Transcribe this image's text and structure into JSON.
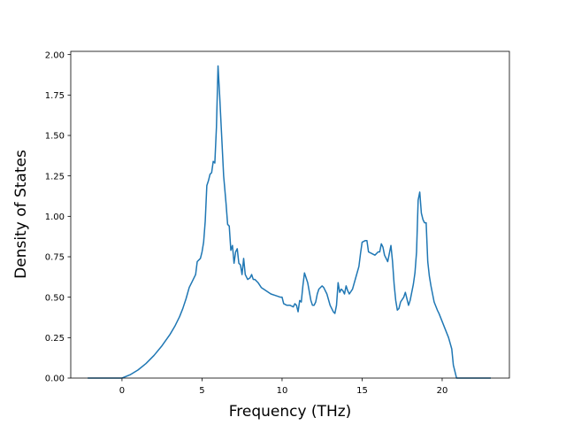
{
  "chart_data": {
    "type": "line",
    "title": "",
    "xlabel": "Frequency (THz)",
    "ylabel": "Density of States",
    "xlim": [
      -3.2,
      24.2
    ],
    "ylim": [
      0.0,
      2.02
    ],
    "grid": false,
    "x_ticks": [
      0,
      5,
      10,
      15,
      20
    ],
    "x_tick_labels": [
      "0",
      "5",
      "10",
      "15",
      "20"
    ],
    "y_ticks": [
      0.0,
      0.25,
      0.5,
      0.75,
      1.0,
      1.25,
      1.5,
      1.75,
      2.0
    ],
    "y_tick_labels": [
      "0.00",
      "0.25",
      "0.50",
      "0.75",
      "1.00",
      "1.25",
      "1.50",
      "1.75",
      "2.00"
    ],
    "series": [
      {
        "color": "#1f77b4",
        "x": [
          -2.1,
          -1.0,
          0.0,
          0.5,
          1.0,
          1.5,
          2.0,
          2.5,
          3.0,
          3.3,
          3.6,
          3.8,
          4.0,
          4.2,
          4.4,
          4.6,
          4.7,
          4.9,
          5.0,
          5.1,
          5.2,
          5.3,
          5.4,
          5.5,
          5.6,
          5.7,
          5.8,
          5.9,
          6.0,
          6.1,
          6.2,
          6.35,
          6.5,
          6.6,
          6.7,
          6.8,
          6.9,
          7.0,
          7.1,
          7.2,
          7.3,
          7.4,
          7.5,
          7.6,
          7.7,
          7.85,
          8.0,
          8.1,
          8.2,
          8.3,
          8.5,
          8.7,
          9.0,
          9.3,
          9.6,
          9.9,
          10.0,
          10.1,
          10.3,
          10.5,
          10.7,
          10.8,
          10.9,
          11.0,
          11.1,
          11.2,
          11.3,
          11.4,
          11.5,
          11.6,
          11.8,
          11.9,
          12.0,
          12.1,
          12.2,
          12.3,
          12.5,
          12.6,
          12.8,
          13.0,
          13.2,
          13.3,
          13.4,
          13.5,
          13.6,
          13.7,
          13.8,
          13.9,
          14.0,
          14.1,
          14.2,
          14.4,
          14.6,
          14.8,
          14.9,
          15.0,
          15.2,
          15.3,
          15.4,
          15.6,
          15.8,
          16.0,
          16.1,
          16.2,
          16.3,
          16.4,
          16.6,
          16.8,
          16.9,
          17.0,
          17.1,
          17.2,
          17.3,
          17.4,
          17.6,
          17.7,
          17.9,
          18.0,
          18.2,
          18.3,
          18.4,
          18.5,
          18.6,
          18.7,
          18.8,
          18.9,
          19.0,
          19.1,
          19.2,
          19.3,
          19.4,
          19.5,
          19.7,
          19.8,
          20.0,
          20.2,
          20.4,
          20.6,
          20.7,
          20.8,
          20.9,
          21.0,
          22.0,
          23.0
        ],
        "y": [
          0.0,
          0.0,
          0.0,
          0.02,
          0.05,
          0.09,
          0.14,
          0.2,
          0.27,
          0.32,
          0.38,
          0.43,
          0.49,
          0.56,
          0.6,
          0.64,
          0.72,
          0.74,
          0.78,
          0.84,
          0.97,
          1.19,
          1.22,
          1.26,
          1.27,
          1.34,
          1.33,
          1.55,
          1.93,
          1.75,
          1.55,
          1.25,
          1.08,
          0.95,
          0.94,
          0.79,
          0.82,
          0.71,
          0.78,
          0.8,
          0.71,
          0.7,
          0.64,
          0.74,
          0.64,
          0.61,
          0.62,
          0.64,
          0.61,
          0.61,
          0.59,
          0.56,
          0.54,
          0.52,
          0.51,
          0.5,
          0.5,
          0.46,
          0.45,
          0.45,
          0.44,
          0.46,
          0.45,
          0.41,
          0.48,
          0.47,
          0.57,
          0.65,
          0.62,
          0.59,
          0.48,
          0.45,
          0.45,
          0.47,
          0.52,
          0.55,
          0.57,
          0.56,
          0.52,
          0.45,
          0.41,
          0.4,
          0.45,
          0.59,
          0.53,
          0.55,
          0.54,
          0.52,
          0.57,
          0.54,
          0.52,
          0.55,
          0.62,
          0.69,
          0.77,
          0.84,
          0.85,
          0.85,
          0.78,
          0.77,
          0.76,
          0.78,
          0.78,
          0.83,
          0.81,
          0.76,
          0.72,
          0.82,
          0.72,
          0.58,
          0.48,
          0.42,
          0.43,
          0.47,
          0.5,
          0.53,
          0.45,
          0.48,
          0.58,
          0.65,
          0.78,
          1.1,
          1.15,
          1.02,
          0.98,
          0.96,
          0.96,
          0.72,
          0.63,
          0.57,
          0.52,
          0.47,
          0.42,
          0.4,
          0.35,
          0.3,
          0.25,
          0.18,
          0.08,
          0.04,
          0.0,
          0.0,
          0.0,
          0.0
        ]
      }
    ]
  }
}
